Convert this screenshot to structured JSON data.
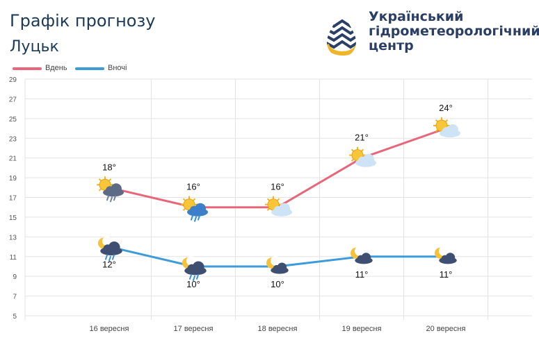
{
  "header": {
    "title": "Графік прогнозу",
    "city": "Луцьк"
  },
  "logo": {
    "lines": [
      "Український",
      "гідрометеорологічний",
      "центр"
    ],
    "colors": {
      "text": "#2b3e66",
      "drop": "#2b3e66",
      "sun": "#f0b429"
    }
  },
  "colors": {
    "day": "#e8667a",
    "night": "#3b9cd9",
    "grid": "#e3e3e3",
    "axis_text": "#555555"
  },
  "chart_data": {
    "type": "line",
    "categories": [
      "16 вересня",
      "17 вересня",
      "18 вересня",
      "19 вересня",
      "20 вересня"
    ],
    "ylim": [
      5,
      29
    ],
    "yticks": [
      5,
      7,
      9,
      11,
      13,
      15,
      17,
      19,
      21,
      23,
      25,
      27,
      29
    ],
    "grid": true,
    "legend": "top-left",
    "series": [
      {
        "name": "Вдень",
        "values": [
          18,
          16,
          16,
          21,
          24
        ],
        "labels": [
          "18°",
          "16°",
          "16°",
          "21°",
          "24°"
        ],
        "icons": [
          "sun-cloud-rain-icon",
          "sun-cloud-rain-icon",
          "sun-cloud-icon",
          "sun-cloud-icon",
          "sun-cloud-icon"
        ]
      },
      {
        "name": "Вночі",
        "values": [
          12,
          10,
          10,
          11,
          11
        ],
        "labels": [
          "12°",
          "10°",
          "10°",
          "11°",
          "11°"
        ],
        "icons": [
          "moon-cloud-rain-icon",
          "moon-cloud-rain-icon",
          "moon-cloud-icon",
          "moon-cloud-icon",
          "moon-cloud-icon"
        ]
      }
    ]
  }
}
